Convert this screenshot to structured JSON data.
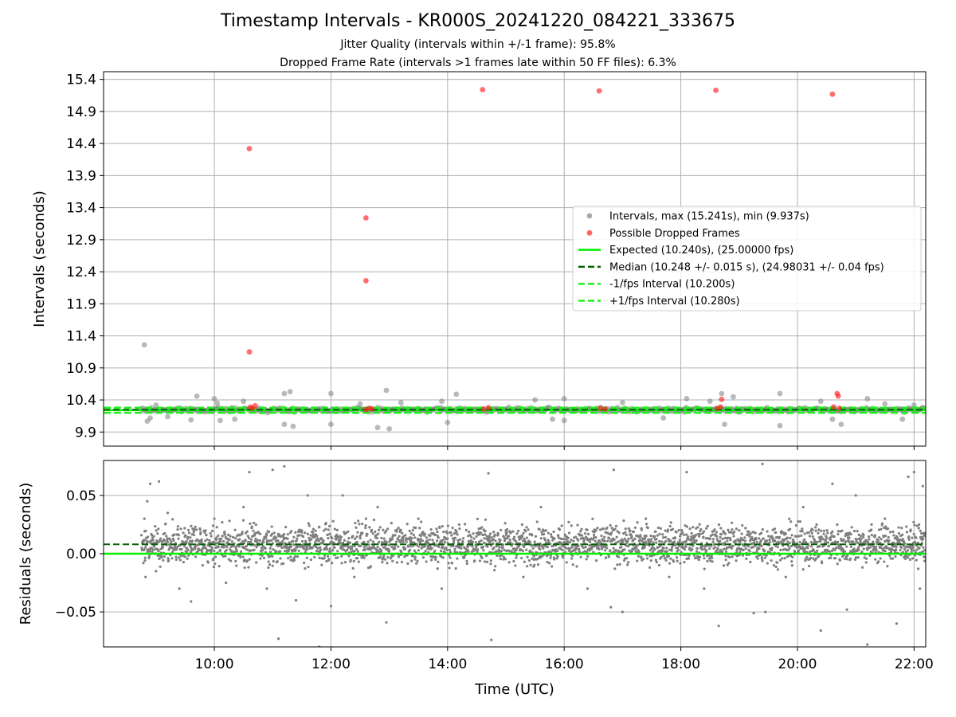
{
  "chart_data": [
    {
      "type": "scatter",
      "panel": "intervals",
      "title": "Timestamp Intervals - KR000S_20241220_084221_333675",
      "subtitle_1": "Jitter Quality (intervals within +/-1 frame): 95.8%",
      "subtitle_2": "Dropped Frame Rate (intervals >1 frames late within 50 FF files): 6.3%",
      "ylabel": "Intervals (seconds)",
      "xlim_hours": [
        8.1,
        22.2
      ],
      "ylim": [
        9.68,
        15.52
      ],
      "y_ticks": [
        "9.9",
        "10.4",
        "10.9",
        "11.4",
        "11.9",
        "12.4",
        "12.9",
        "13.4",
        "13.9",
        "14.4",
        "14.9",
        "15.4"
      ],
      "grid": true,
      "legend_position": "center-right",
      "expected": 10.24,
      "median": 10.248,
      "minus_fps": 10.2,
      "plus_fps": 10.28,
      "series": [
        {
          "name": "Intervals, max (15.241s), min (9.937s)",
          "color": "#7f7f7f",
          "points": [
            [
              8.8,
              11.26
            ],
            [
              8.85,
              10.07
            ],
            [
              8.9,
              10.12
            ],
            [
              9.0,
              10.32
            ],
            [
              9.2,
              10.14
            ],
            [
              9.6,
              10.09
            ],
            [
              9.7,
              10.46
            ],
            [
              10.0,
              10.42
            ],
            [
              10.1,
              10.08
            ],
            [
              10.05,
              10.35
            ],
            [
              10.35,
              10.1
            ],
            [
              10.5,
              10.38
            ],
            [
              10.8,
              10.22
            ],
            [
              11.2,
              10.5
            ],
            [
              11.3,
              10.53
            ],
            [
              11.2,
              10.02
            ],
            [
              11.35,
              9.99
            ],
            [
              12.0,
              10.5
            ],
            [
              12.0,
              10.02
            ],
            [
              12.5,
              10.34
            ],
            [
              12.8,
              9.97
            ],
            [
              12.95,
              10.55
            ],
            [
              13.0,
              9.95
            ],
            [
              13.2,
              10.36
            ],
            [
              13.9,
              10.38
            ],
            [
              14.0,
              10.05
            ],
            [
              14.15,
              10.49
            ],
            [
              15.5,
              10.4
            ],
            [
              15.8,
              10.1
            ],
            [
              16.0,
              10.42
            ],
            [
              16.0,
              10.08
            ],
            [
              17.0,
              10.36
            ],
            [
              17.7,
              10.12
            ],
            [
              18.1,
              10.42
            ],
            [
              18.5,
              10.38
            ],
            [
              18.7,
              10.5
            ],
            [
              18.75,
              10.02
            ],
            [
              18.9,
              10.45
            ],
            [
              19.7,
              10.5
            ],
            [
              19.7,
              10.0
            ],
            [
              20.4,
              10.38
            ],
            [
              20.6,
              10.1
            ],
            [
              20.75,
              10.02
            ],
            [
              21.2,
              10.42
            ],
            [
              21.5,
              10.34
            ],
            [
              21.8,
              10.1
            ],
            [
              22.0,
              10.32
            ]
          ]
        },
        {
          "name": "Possible Dropped Frames",
          "color": "#ff3333",
          "points": [
            [
              10.6,
              14.32
            ],
            [
              10.6,
              11.15
            ],
            [
              10.62,
              10.29
            ],
            [
              10.65,
              10.27
            ],
            [
              10.7,
              10.31
            ],
            [
              12.6,
              13.24
            ],
            [
              12.6,
              12.26
            ],
            [
              12.6,
              10.25
            ],
            [
              12.65,
              10.27
            ],
            [
              12.7,
              10.26
            ],
            [
              14.6,
              15.24
            ],
            [
              14.62,
              10.26
            ],
            [
              14.7,
              10.28
            ],
            [
              16.6,
              15.22
            ],
            [
              16.62,
              10.27
            ],
            [
              16.7,
              10.26
            ],
            [
              18.6,
              15.23
            ],
            [
              18.62,
              10.27
            ],
            [
              18.68,
              10.29
            ],
            [
              18.7,
              10.41
            ],
            [
              20.6,
              15.17
            ],
            [
              20.62,
              10.29
            ],
            [
              20.68,
              10.5
            ],
            [
              20.7,
              10.46
            ],
            [
              20.72,
              10.27
            ]
          ]
        }
      ]
    },
    {
      "type": "scatter",
      "panel": "residuals",
      "xlabel": "Time (UTC)",
      "ylabel": "Residuals (seconds)",
      "xlim_hours": [
        8.1,
        22.2
      ],
      "ylim": [
        -0.08,
        0.08
      ],
      "y_ticks": [
        "−0.05",
        "0.00",
        "0.05"
      ],
      "x_ticks": [
        "10:00",
        "12:00",
        "14:00",
        "16:00",
        "18:00",
        "20:00",
        "22:00"
      ],
      "grid": true,
      "expected_residual": 0.0,
      "median_residual": 0.008,
      "series": [
        {
          "name": "",
          "color": "#7f7f7f",
          "points": [
            [
              8.8,
              0.03
            ],
            [
              8.82,
              -0.02
            ],
            [
              8.85,
              0.045
            ],
            [
              8.9,
              0.06
            ],
            [
              9.0,
              -0.015
            ],
            [
              9.05,
              0.062
            ],
            [
              9.1,
              0.01
            ],
            [
              9.2,
              0.035
            ],
            [
              9.4,
              -0.03
            ],
            [
              9.6,
              -0.041
            ],
            [
              9.65,
              0.02
            ],
            [
              9.8,
              -0.01
            ],
            [
              10.0,
              0.03
            ],
            [
              10.2,
              -0.025
            ],
            [
              10.5,
              0.04
            ],
            [
              10.6,
              0.07
            ],
            [
              10.9,
              -0.03
            ],
            [
              11.0,
              0.072
            ],
            [
              11.1,
              -0.073
            ],
            [
              11.2,
              0.075
            ],
            [
              11.4,
              -0.04
            ],
            [
              11.6,
              0.05
            ],
            [
              11.8,
              -0.08
            ],
            [
              12.0,
              -0.045
            ],
            [
              12.2,
              0.05
            ],
            [
              12.4,
              -0.02
            ],
            [
              12.6,
              0.03
            ],
            [
              12.8,
              0.04
            ],
            [
              12.95,
              -0.059
            ],
            [
              13.2,
              0.01
            ],
            [
              13.5,
              0.03
            ],
            [
              13.9,
              -0.03
            ],
            [
              14.2,
              0.025
            ],
            [
              14.7,
              0.069
            ],
            [
              14.75,
              -0.074
            ],
            [
              15.0,
              0.02
            ],
            [
              15.3,
              -0.02
            ],
            [
              15.6,
              0.04
            ],
            [
              16.0,
              0.01
            ],
            [
              16.4,
              -0.03
            ],
            [
              16.8,
              -0.046
            ],
            [
              16.85,
              0.072
            ],
            [
              17.0,
              -0.05
            ],
            [
              17.4,
              0.03
            ],
            [
              17.8,
              -0.02
            ],
            [
              18.1,
              0.07
            ],
            [
              18.4,
              -0.03
            ],
            [
              18.65,
              -0.062
            ],
            [
              19.0,
              0.02
            ],
            [
              19.25,
              -0.051
            ],
            [
              19.4,
              0.077
            ],
            [
              19.45,
              -0.05
            ],
            [
              19.8,
              -0.02
            ],
            [
              20.1,
              0.04
            ],
            [
              20.4,
              -0.066
            ],
            [
              20.6,
              0.06
            ],
            [
              20.85,
              -0.048
            ],
            [
              21.0,
              0.05
            ],
            [
              21.2,
              -0.078
            ],
            [
              21.5,
              0.03
            ],
            [
              21.7,
              -0.06
            ],
            [
              21.9,
              0.066
            ],
            [
              22.0,
              0.07
            ],
            [
              22.1,
              -0.03
            ],
            [
              22.15,
              0.058
            ]
          ]
        }
      ]
    }
  ],
  "legend": {
    "items": [
      {
        "label": "Intervals, max (15.241s), min (9.937s)",
        "kind": "marker",
        "color": "#aaaaaa"
      },
      {
        "label": "Possible Dropped Frames",
        "kind": "marker",
        "color": "#ff6666"
      },
      {
        "label": "Expected (10.240s), (25.00000 fps)",
        "kind": "line-solid",
        "color": "#00ee00"
      },
      {
        "label": "Median (10.248 +/- 0.015 s), (24.98031 +/- 0.04 fps)",
        "kind": "line-dashed",
        "color": "#006400"
      },
      {
        "label": "-1/fps Interval (10.200s)",
        "kind": "line-dashed",
        "color": "#22ee22"
      },
      {
        "label": "+1/fps Interval (10.280s)",
        "kind": "line-dashed",
        "color": "#22ee22"
      }
    ]
  }
}
